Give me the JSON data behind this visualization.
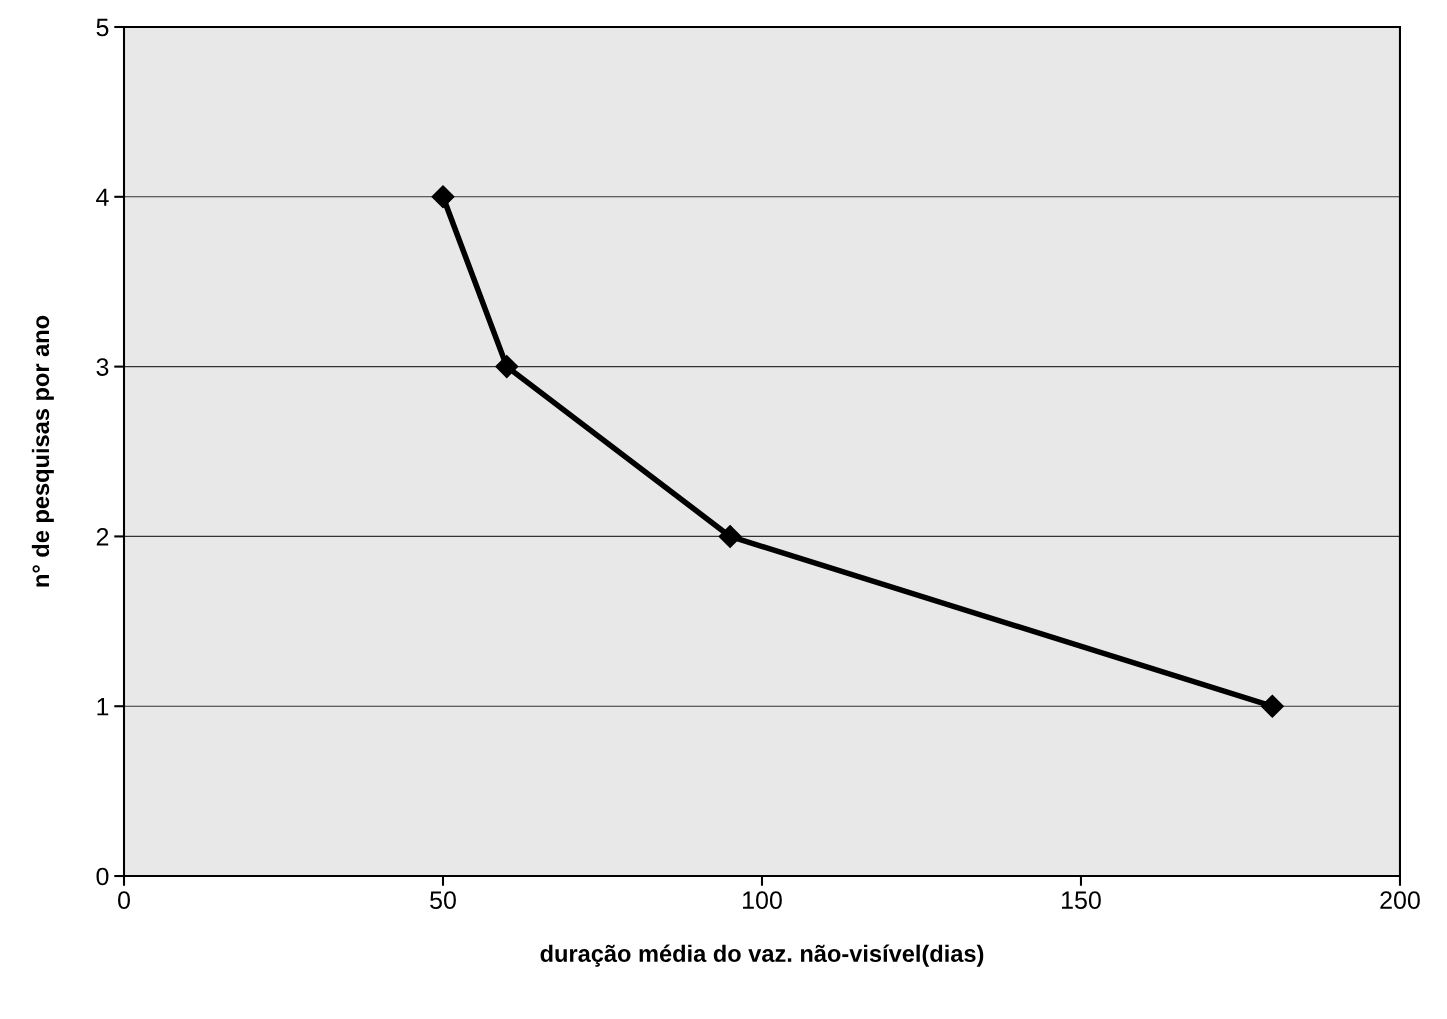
{
  "chart_data": {
    "type": "line",
    "xlabel": "duração média do vaz. não-visível(dias)",
    "ylabel": "n° de pesquisas por ano",
    "x": [
      50,
      60,
      95,
      180
    ],
    "series": [
      {
        "color": "#000000",
        "values": [
          4,
          3,
          2,
          1
        ]
      }
    ],
    "xlim": [
      0,
      200
    ],
    "xticks": [
      0,
      50,
      100,
      150,
      200
    ],
    "ylim": [
      0,
      5
    ],
    "yticks": [
      0,
      1,
      2,
      3,
      4,
      5
    ],
    "grid": "y",
    "marker": "diamond",
    "line_style": "solid",
    "legend": false
  }
}
